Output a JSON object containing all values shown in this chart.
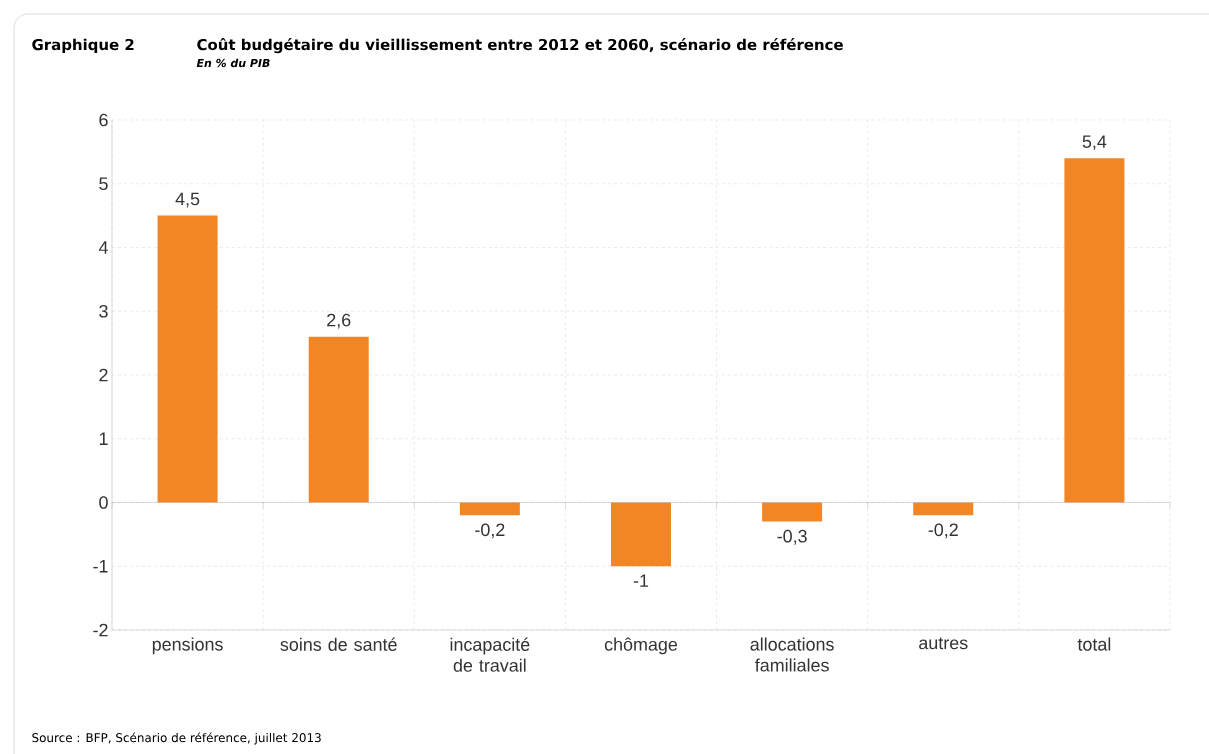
{
  "chart_data": {
    "type": "bar",
    "title": "Coût budgétaire du vieillissement entre 2012 et 2060, scénario de référence",
    "subtitle": "En % du PIB",
    "annotations": [
      "Graphique 2",
      "Source : BFP, Scénario de référence, juillet 2013"
    ],
    "categories": [
      "pensions",
      "soins de santé",
      "incapacité de travail",
      "chômage",
      "allocations familiales",
      "autres",
      "total"
    ],
    "values": [
      4.5,
      2.6,
      -0.2,
      -1,
      -0.3,
      -0.2,
      5.4
    ],
    "value_labels": [
      "4,5",
      "2,6",
      "-0,2",
      "-1",
      "-0,3",
      "-0,2",
      "5,4"
    ],
    "color": "#f28524",
    "ylim": [
      -2,
      6
    ],
    "yticks": [
      -2,
      -1,
      0,
      1,
      2,
      3,
      4,
      5,
      6
    ],
    "grid": true
  }
}
